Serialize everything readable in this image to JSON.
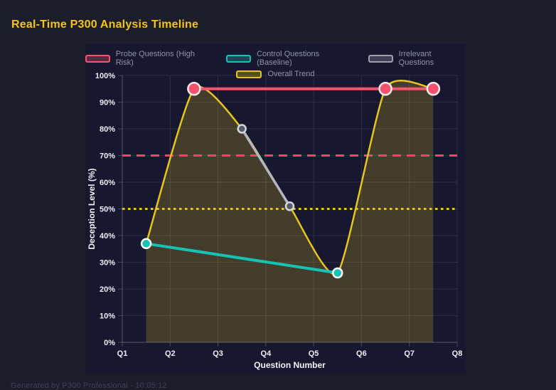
{
  "header": {
    "title": "Real-Time P300 Analysis Timeline",
    "title_color": "#f2c51d"
  },
  "legend": {
    "rows": [
      [
        {
          "label": "Probe Questions (High Risk)",
          "color": "#f4566e"
        },
        {
          "label": "Control Questions (Baseline)",
          "color": "#15c2b4"
        },
        {
          "label": "Irrelevant Questions",
          "color": "#9ca0ac"
        }
      ],
      [
        {
          "label": "Overall Trend",
          "color": "#e6c51d"
        }
      ]
    ]
  },
  "footer": {
    "text": "Generated by P300 Professional - 10:05:12"
  },
  "chart_data": {
    "type": "line",
    "title": "Real-Time P300 Analysis Timeline",
    "xlabel": "Question Number",
    "ylabel": "Deception Level (%)",
    "xlim": [
      1,
      8
    ],
    "ylim": [
      0,
      100
    ],
    "grid": true,
    "legend_position": "top",
    "x_ticks": [
      "Q1",
      "Q2",
      "Q3",
      "Q4",
      "Q5",
      "Q6",
      "Q7",
      "Q8"
    ],
    "x_tick_values": [
      1,
      2,
      3,
      4,
      5,
      6,
      7,
      8
    ],
    "y_ticks": [
      "0%",
      "10%",
      "20%",
      "30%",
      "40%",
      "50%",
      "60%",
      "70%",
      "80%",
      "90%",
      "100%"
    ],
    "y_tick_values": [
      0,
      10,
      20,
      30,
      40,
      50,
      60,
      70,
      80,
      90,
      100
    ],
    "series": [
      {
        "name": "Overall Trend",
        "color": "#e6c51d",
        "x": [
          1.5,
          2.5,
          3.5,
          4.5,
          5.5,
          6.5,
          7.5
        ],
        "y": [
          37,
          95,
          80,
          51,
          26,
          95,
          95
        ],
        "smooth": true,
        "fill": true,
        "fill_color": "rgba(230,197,29,0.22)",
        "width": 2.5,
        "point_radius": 0,
        "point_fill": "#e6c51d",
        "point_ring": "#ffffff"
      },
      {
        "name": "Irrelevant Questions",
        "color": "#b4b7c1",
        "x": [
          3.5,
          4.5
        ],
        "y": [
          80,
          51
        ],
        "smooth": false,
        "fill": false,
        "width": 3.5,
        "point_radius": 5.5,
        "point_fill": "#565b6b",
        "point_ring": "#d3d6de"
      },
      {
        "name": "Control Questions (Baseline)",
        "color": "#15c2b4",
        "x": [
          1.5,
          5.5
        ],
        "y": [
          37,
          26
        ],
        "smooth": false,
        "fill": false,
        "width": 4,
        "point_radius": 6.5,
        "point_fill": "#15c2b4",
        "point_ring": "#ffffff"
      },
      {
        "name": "Probe Questions (High Risk)",
        "color": "#f4566e",
        "x": [
          2.5,
          6.5,
          7.5
        ],
        "y": [
          95,
          95,
          95
        ],
        "smooth": false,
        "fill": false,
        "width": 4,
        "point_radius": 8.5,
        "point_fill": "#f4516c",
        "point_ring": "#ffe9ed"
      }
    ],
    "reference_lines": [
      {
        "y": 70,
        "color": "#f4436a",
        "dash": "dashed",
        "width": 3
      },
      {
        "y": 50,
        "color": "#e6c51d",
        "dash": "dotted",
        "width": 3
      }
    ]
  }
}
